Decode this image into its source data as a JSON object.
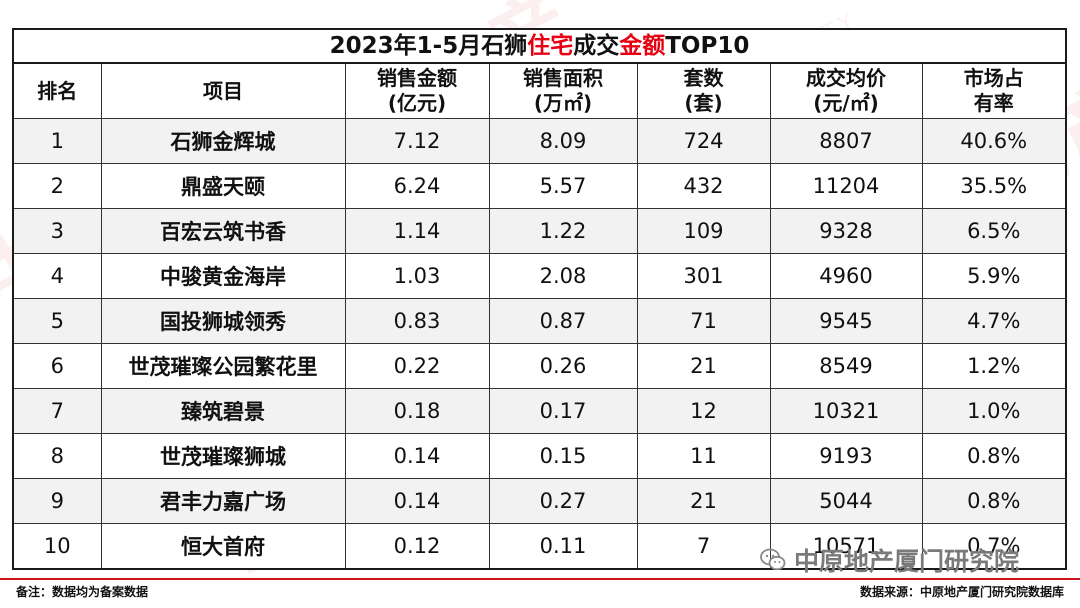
{
  "title": {
    "pre": "2023年1-5月石狮",
    "highlight1": "住宅",
    "mid": "成交",
    "highlight2": "金额",
    "post": "TOP10"
  },
  "headers": {
    "rank": "排名",
    "project": "项目",
    "amount_l1": "销售金额",
    "amount_l2": "(亿元)",
    "area_l1": "销售面积",
    "area_l2": "(万㎡)",
    "count_l1": "套数",
    "count_l2": "(套)",
    "price_l1": "成交均价",
    "price_l2": "(元/㎡)",
    "share_l1": "市场占",
    "share_l2": "有率"
  },
  "rows": [
    {
      "rank": "1",
      "project": "石狮金辉城",
      "amount": "7.12",
      "area": "8.09",
      "count": "724",
      "price": "8807",
      "share": "40.6%"
    },
    {
      "rank": "2",
      "project": "鼎盛天颐",
      "amount": "6.24",
      "area": "5.57",
      "count": "432",
      "price": "11204",
      "share": "35.5%"
    },
    {
      "rank": "3",
      "project": "百宏云筑书香",
      "amount": "1.14",
      "area": "1.22",
      "count": "109",
      "price": "9328",
      "share": "6.5%"
    },
    {
      "rank": "4",
      "project": "中骏黄金海岸",
      "amount": "1.03",
      "area": "2.08",
      "count": "301",
      "price": "4960",
      "share": "5.9%"
    },
    {
      "rank": "5",
      "project": "国投狮城领秀",
      "amount": "0.83",
      "area": "0.87",
      "count": "71",
      "price": "9545",
      "share": "4.7%"
    },
    {
      "rank": "6",
      "project": "世茂璀璨公园繁花里",
      "amount": "0.22",
      "area": "0.26",
      "count": "21",
      "price": "8549",
      "share": "1.2%"
    },
    {
      "rank": "7",
      "project": "臻筑碧景",
      "amount": "0.18",
      "area": "0.17",
      "count": "12",
      "price": "10321",
      "share": "1.0%"
    },
    {
      "rank": "8",
      "project": "世茂璀璨狮城",
      "amount": "0.14",
      "area": "0.15",
      "count": "11",
      "price": "9193",
      "share": "0.8%"
    },
    {
      "rank": "9",
      "project": "君丰力嘉广场",
      "amount": "0.14",
      "area": "0.27",
      "count": "21",
      "price": "5044",
      "share": "0.8%"
    },
    {
      "rank": "10",
      "project": "恒大首府",
      "amount": "0.12",
      "area": "0.11",
      "count": "7",
      "price": "10571",
      "share": "0.7%"
    }
  ],
  "footer": {
    "note": "备注：数据均为备案数据",
    "source": "数据来源：中原地产厦门研究院数据库"
  },
  "brand": {
    "icon": "wechat-icon",
    "text": "中原地产厦门研究院"
  },
  "watermark": {
    "cn": "中原地产",
    "en": "CENTALINE PROPERTY"
  },
  "colors": {
    "highlight": "#e60012",
    "odd_row": "#f2f2f2",
    "brand_line": "#c8161d"
  }
}
